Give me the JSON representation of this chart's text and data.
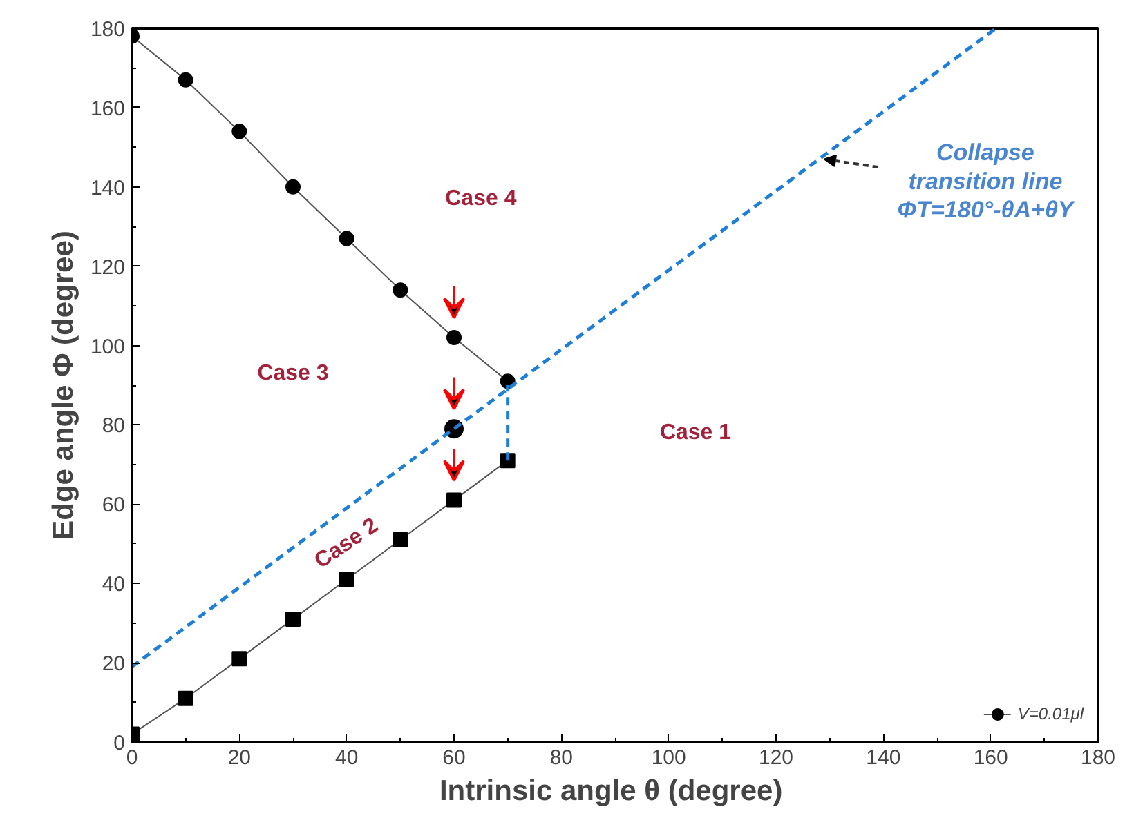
{
  "chart_data": {
    "type": "line",
    "xlabel": "Intrinsic angle θ  (degree)",
    "ylabel": "Edge angle Φ (degree)",
    "xlim": [
      0,
      180
    ],
    "ylim": [
      0,
      180
    ],
    "xticks": [
      0,
      20,
      40,
      60,
      80,
      100,
      120,
      140,
      160,
      180
    ],
    "yticks": [
      0,
      20,
      40,
      60,
      80,
      100,
      120,
      140,
      160,
      180
    ],
    "x": [
      0,
      10,
      20,
      30,
      40,
      50,
      60,
      70
    ],
    "series": [
      {
        "name": "V=0.01μl",
        "color": "#000000",
        "marker": "circle",
        "values": [
          178,
          167,
          154,
          140,
          127,
          114,
          102,
          91
        ]
      },
      {
        "color": "#000000",
        "marker": "square",
        "values": [
          2,
          11,
          21,
          31,
          41,
          51,
          61,
          71
        ]
      },
      {
        "type": "scatter",
        "color": "#000000",
        "marker": "circle",
        "x": [
          60
        ],
        "values": [
          79
        ]
      },
      {
        "color": "#1f7fd6",
        "line_style": "dashed",
        "marker": "none",
        "x": [
          0,
          161
        ],
        "values": [
          19,
          180
        ]
      },
      {
        "color": "#1f7fd6",
        "line_style": "dashed",
        "marker": "none",
        "x": [
          70,
          70
        ],
        "values": [
          71,
          90
        ]
      }
    ],
    "annotations": [
      "Case 4",
      "Case 3",
      "Case 2",
      "Case 1",
      {
        "text": "Collapse transition line ΦT=180°-θA+θY",
        "x": 129,
        "y": 147
      }
    ],
    "grid": false,
    "legend": "bottom right"
  }
}
